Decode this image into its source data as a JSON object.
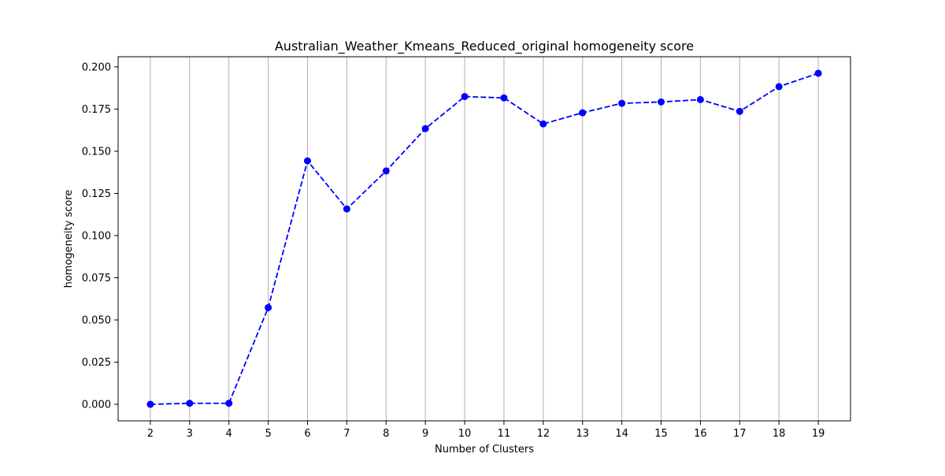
{
  "chart_data": {
    "type": "line",
    "title": "Australian_Weather_Kmeans_Reduced_original homogeneity score",
    "xlabel": "Number of Clusters",
    "ylabel": "homogeneity score",
    "x": [
      2,
      3,
      4,
      5,
      6,
      7,
      8,
      9,
      10,
      11,
      12,
      13,
      14,
      15,
      16,
      17,
      18,
      19
    ],
    "series": [
      {
        "values": [
          0.0,
          0.0006,
          0.0006,
          0.0573,
          0.1443,
          0.1158,
          0.1383,
          0.1634,
          0.1824,
          0.1816,
          0.1662,
          0.1728,
          0.1784,
          0.1792,
          0.1806,
          0.1736,
          0.1883,
          0.1962
        ]
      }
    ],
    "yticks": [
      "0.000",
      "0.025",
      "0.050",
      "0.075",
      "0.100",
      "0.125",
      "0.150",
      "0.175",
      "0.200"
    ],
    "ylim": [
      -0.0098,
      0.206
    ],
    "xlim": [
      1.18,
      19.82
    ],
    "grid": "vertical",
    "colors": {
      "line": "#0000ff",
      "grid": "#b0b0b0",
      "axes": "#000000"
    }
  }
}
